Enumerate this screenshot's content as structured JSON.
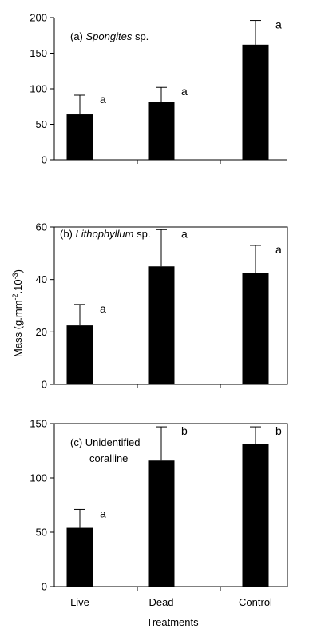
{
  "chart_data": [
    {
      "type": "bar",
      "panel_label_prefix": "(a) ",
      "panel_label_species": "Spongites",
      "panel_label_suffix": " sp.",
      "categories": [
        "Live",
        "Dead",
        "Control"
      ],
      "values": [
        64,
        81,
        162
      ],
      "errors": [
        27,
        21,
        34
      ],
      "significance": [
        "a",
        "a",
        "a"
      ],
      "ylim": [
        0,
        200
      ],
      "yticks": [
        0,
        50,
        100,
        150,
        200
      ],
      "bar_color": "#000000"
    },
    {
      "type": "bar",
      "panel_label_prefix": "(b) ",
      "panel_label_species": "Lithophyllum",
      "panel_label_suffix": " sp.",
      "categories": [
        "Live",
        "Dead",
        "Control"
      ],
      "values": [
        22.5,
        45,
        42.5
      ],
      "errors": [
        8,
        14,
        10.5
      ],
      "significance": [
        "a",
        "a",
        "a"
      ],
      "ylim": [
        0,
        60
      ],
      "yticks": [
        0,
        20,
        40,
        60
      ],
      "bar_color": "#000000"
    },
    {
      "type": "bar",
      "panel_label_line1": "(c) Unidentified",
      "panel_label_line2": "coralline",
      "categories": [
        "Live",
        "Dead",
        "Control"
      ],
      "values": [
        54,
        116,
        131
      ],
      "errors": [
        17,
        31,
        16
      ],
      "significance": [
        "a",
        "b",
        "b"
      ],
      "ylim": [
        0,
        150
      ],
      "yticks": [
        0,
        50,
        100,
        150
      ],
      "bar_color": "#000000"
    }
  ],
  "ylabel_main": "Mass (g.mm",
  "ylabel_sup1": "-2",
  "ylabel_mid": ".10",
  "ylabel_sup2": "-3",
  "ylabel_end": ")",
  "xlabel": "Treatments"
}
